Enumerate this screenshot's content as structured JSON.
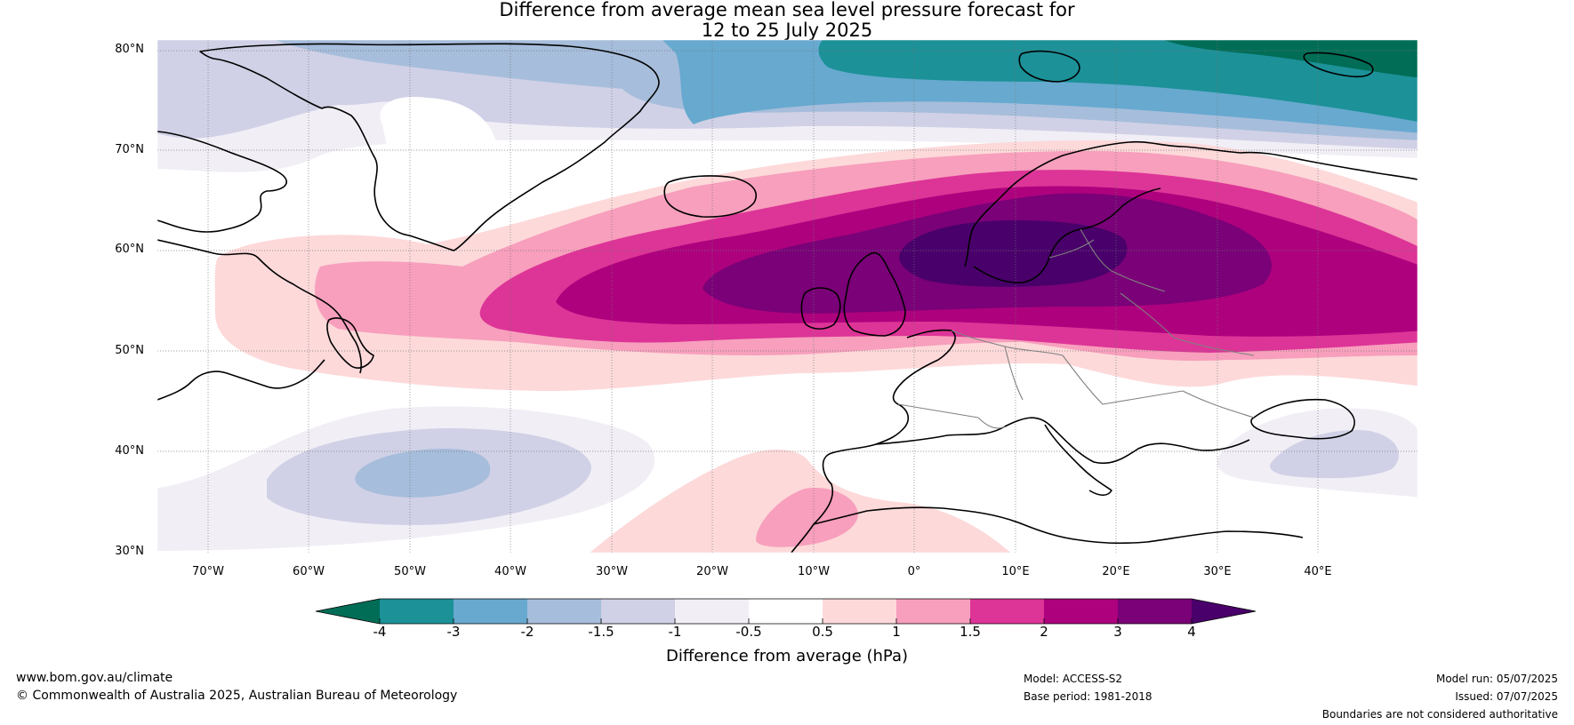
{
  "title": {
    "line1": "Difference from average mean sea level pressure forecast for",
    "line2": "12 to 25 July 2025"
  },
  "map": {
    "region": "North Atlantic and Europe",
    "lat_labels": [
      "80°N",
      "70°N",
      "60°N",
      "50°N",
      "40°N",
      "30°N"
    ],
    "lon_labels": [
      "70°W",
      "60°W",
      "50°W",
      "40°W",
      "30°W",
      "20°W",
      "10°W",
      "0°",
      "10°E",
      "20°E",
      "30°E",
      "40°E"
    ],
    "anomaly_fields": [
      {
        "feature": "high-pressure anomaly centre",
        "location": "over southern Scandinavia and the North Sea",
        "value_hpa": "above 4"
      },
      {
        "feature": "high-pressure anomaly belt",
        "location": "from Newfoundland across the North Atlantic to Russia",
        "value_hpa": "0.5 to 3"
      },
      {
        "feature": "low-pressure anomaly",
        "location": "Greenland Sea and Svalbard",
        "value_hpa": "-2 to below -4"
      },
      {
        "feature": "low-pressure anomaly",
        "location": "central North Atlantic near 37°N 45°W",
        "value_hpa": "-0.5 to -2"
      },
      {
        "feature": "positive anomaly",
        "location": "off Morocco near 33°N 10°W",
        "value_hpa": "1 to 1.5"
      },
      {
        "feature": "weak negative anomaly",
        "location": "Caspian region",
        "value_hpa": "-0.5 to -1.5"
      }
    ]
  },
  "colorbar": {
    "ticks": [
      "-4",
      "-3",
      "-2",
      "-1.5",
      "-1",
      "-0.5",
      "0.5",
      "1",
      "1.5",
      "2",
      "3",
      "4"
    ],
    "colors": [
      "#016d56",
      "#1c9198",
      "#67a9cf",
      "#a6bddb",
      "#d0d1e6",
      "#f1eef6",
      "#ffffff",
      "#fdd9da",
      "#f79fbc",
      "#dd3497",
      "#ae017e",
      "#7a0177",
      "#49006a"
    ],
    "title": "Difference from average (hPa)"
  },
  "footer": {
    "website": "www.bom.gov.au/climate",
    "copyright": "© Commonwealth of Australia 2025, Australian Bureau of Meteorology",
    "model": "Model: ACCESS-S2",
    "base_period": "Base period: 1981-2018",
    "model_run": "Model run: 05/07/2025",
    "issued": "Issued: 07/07/2025",
    "disclaimer": "Boundaries are not considered authoritative"
  }
}
